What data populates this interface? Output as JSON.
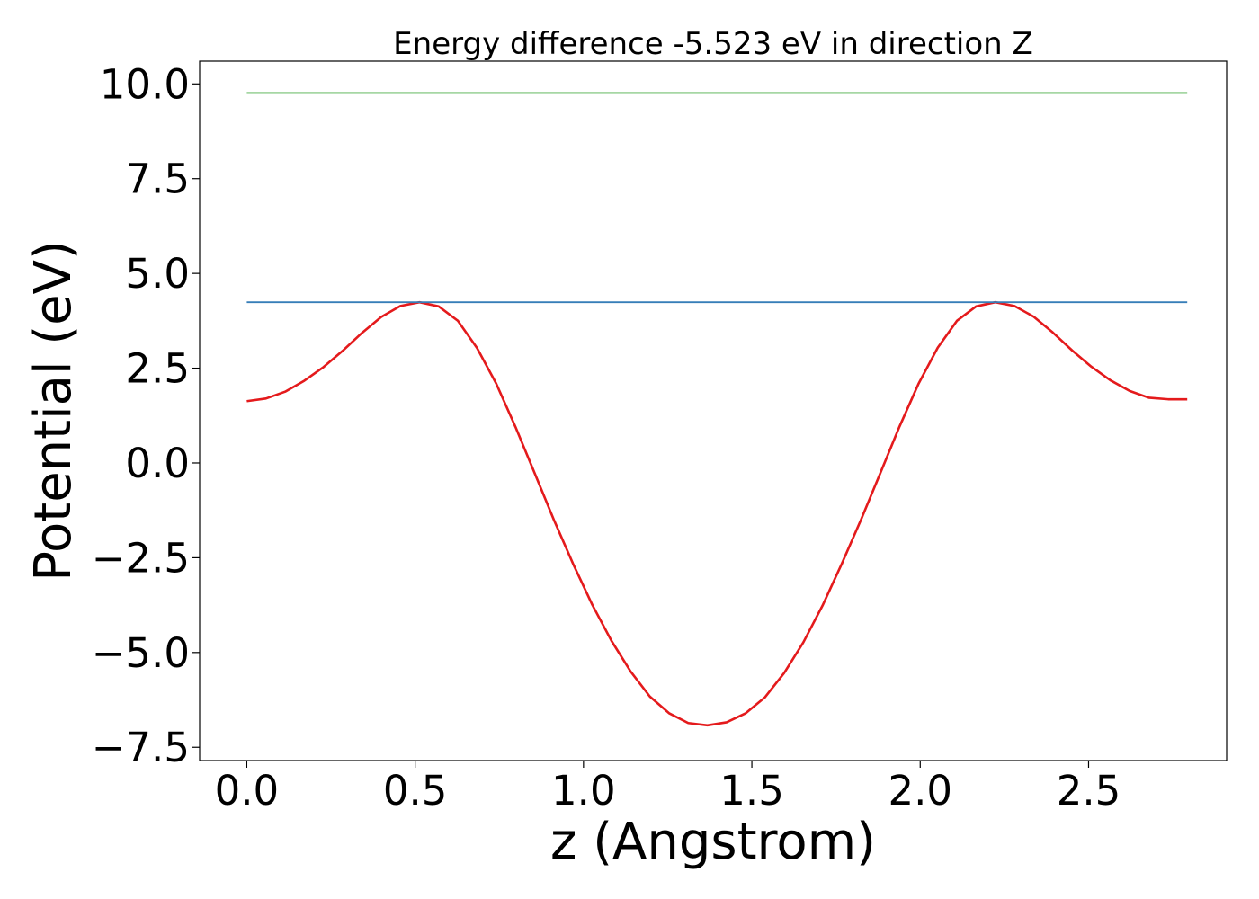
{
  "chart_data": {
    "type": "line",
    "title": "Energy difference -5.523 eV in direction Z",
    "xlabel": "z (Angstrom)",
    "ylabel": "Potential (eV)",
    "xlim": [
      -0.14,
      2.91
    ],
    "ylim": [
      -7.85,
      10.6
    ],
    "x_ticks": [
      0.0,
      0.5,
      1.0,
      1.5,
      2.0,
      2.5
    ],
    "x_tick_labels": [
      "0.0",
      "0.5",
      "1.0",
      "1.5",
      "2.0",
      "2.5"
    ],
    "y_ticks": [
      10.0,
      7.5,
      5.0,
      2.5,
      0.0,
      -2.5,
      -5.0,
      -7.5
    ],
    "y_tick_labels": [
      "10.0",
      "7.5",
      "5.0",
      "2.5",
      "0.0",
      "−2.5",
      "−5.0",
      "−7.5"
    ],
    "grid": false,
    "legend": false,
    "series": [
      {
        "color": "#e41a1c",
        "x": [
          0.0,
          0.057,
          0.114,
          0.171,
          0.228,
          0.285,
          0.342,
          0.399,
          0.456,
          0.513,
          0.57,
          0.627,
          0.684,
          0.741,
          0.798,
          0.855,
          0.912,
          0.969,
          1.026,
          1.083,
          1.14,
          1.197,
          1.254,
          1.311,
          1.368,
          1.425,
          1.482,
          1.539,
          1.596,
          1.653,
          1.71,
          1.767,
          1.824,
          1.881,
          1.938,
          1.995,
          2.052,
          2.109,
          2.166,
          2.223,
          2.28,
          2.337,
          2.394,
          2.451,
          2.508,
          2.565,
          2.622,
          2.679,
          2.736,
          2.793
        ],
        "y": [
          1.63,
          1.7,
          1.88,
          2.17,
          2.53,
          2.96,
          3.43,
          3.85,
          4.14,
          4.24,
          4.13,
          3.75,
          3.03,
          2.09,
          0.95,
          -0.27,
          -1.5,
          -2.66,
          -3.74,
          -4.69,
          -5.5,
          -6.16,
          -6.6,
          -6.86,
          -6.92,
          -6.84,
          -6.6,
          -6.18,
          -5.54,
          -4.73,
          -3.76,
          -2.66,
          -1.5,
          -0.28,
          0.95,
          2.09,
          3.04,
          3.75,
          4.13,
          4.24,
          4.14,
          3.86,
          3.44,
          2.97,
          2.54,
          2.18,
          1.9,
          1.72,
          1.68,
          1.68
        ]
      },
      {
        "color": "#377eb8",
        "x": [
          0.0,
          2.793
        ],
        "y": [
          4.24,
          4.24
        ]
      },
      {
        "color": "#4daf4a",
        "x": [
          0.0,
          2.793
        ],
        "y": [
          9.76,
          9.76
        ]
      }
    ]
  }
}
